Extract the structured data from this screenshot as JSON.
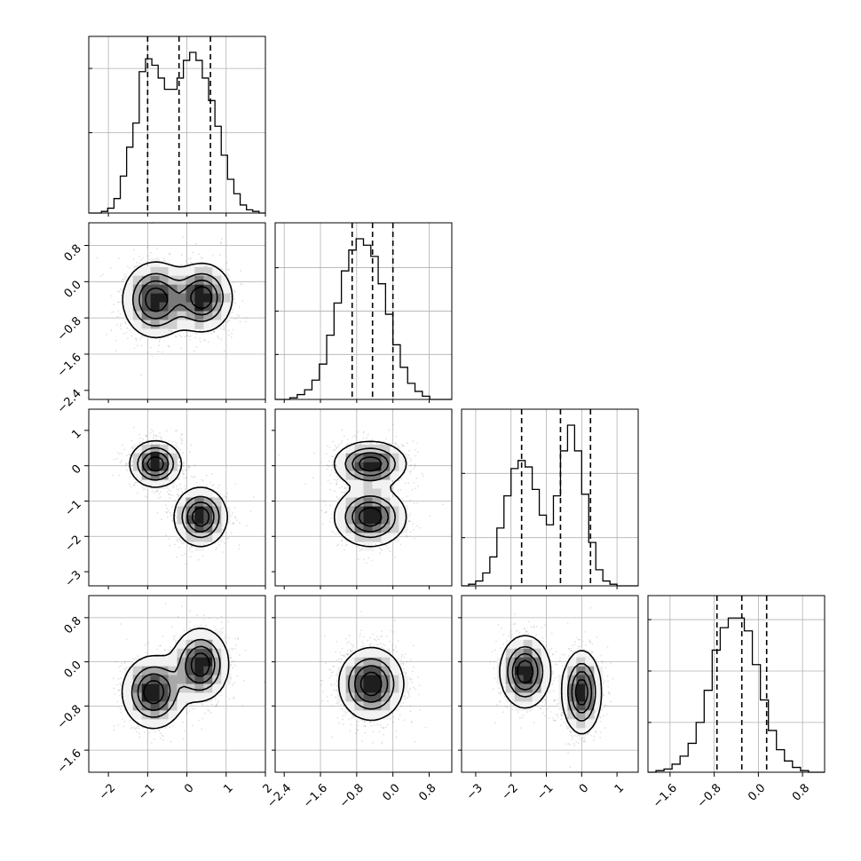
{
  "chart_data": {
    "type": "corner",
    "title": "",
    "n_params": 4,
    "colors": {
      "points": "#777777",
      "lines": "#000000",
      "grid": "#b0b0b0",
      "density_levels": [
        "#f2f2f2",
        "#cfcfcf",
        "#a8a8a8",
        "#7a7a7a",
        "#505050",
        "#1e1e1e"
      ]
    },
    "grid": true,
    "params": [
      {
        "label": "",
        "range": [
          -2.5,
          2.0
        ],
        "ticks": [
          -2,
          -1,
          0,
          1,
          2
        ],
        "tick_labels": [
          "−2",
          "−1",
          "0",
          "1",
          "2"
        ],
        "quantiles": [
          -1.0,
          -0.2,
          0.6
        ],
        "hist_max": 1.0,
        "hist_grid": [
          0.5,
          0.9
        ],
        "hist_bins": [
          0.0,
          0.0,
          0.01,
          0.03,
          0.09,
          0.23,
          0.41,
          0.56,
          0.88,
          0.96,
          0.92,
          0.84,
          0.77,
          0.77,
          0.84,
          0.95,
          1.0,
          0.95,
          0.84,
          0.7,
          0.54,
          0.36,
          0.21,
          0.12,
          0.05,
          0.02,
          0.01,
          0.0
        ]
      },
      {
        "label": "",
        "range": [
          -2.6,
          1.3
        ],
        "ticks": [
          -2.4,
          -1.6,
          -0.8,
          0.0,
          0.8
        ],
        "tick_labels": [
          "−2.4",
          "−1.6",
          "−0.8",
          "0.0",
          "0.8"
        ],
        "quantiles": [
          -0.9,
          -0.45,
          0.0
        ],
        "hist_max": 1.0,
        "hist_grid": [
          0.28,
          0.55,
          0.82
        ],
        "hist_bins": [
          0.0,
          0.0,
          0.01,
          0.03,
          0.06,
          0.12,
          0.22,
          0.4,
          0.6,
          0.8,
          0.93,
          1.0,
          0.96,
          0.89,
          0.72,
          0.53,
          0.34,
          0.2,
          0.1,
          0.05,
          0.02,
          0.0,
          0.0,
          0.0
        ]
      },
      {
        "label": "",
        "range": [
          -3.4,
          1.6
        ],
        "ticks": [
          -3,
          -2,
          -1,
          0,
          1
        ],
        "tick_labels": [
          "−3",
          "−2",
          "−1",
          "0",
          "1"
        ],
        "quantiles": [
          -1.7,
          -0.6,
          0.25
        ],
        "hist_max": 1.0,
        "hist_grid": [
          0.3,
          0.7
        ],
        "hist_bins": [
          0.0,
          0.01,
          0.03,
          0.08,
          0.18,
          0.36,
          0.56,
          0.73,
          0.78,
          0.74,
          0.6,
          0.44,
          0.38,
          0.56,
          0.84,
          1.0,
          0.84,
          0.57,
          0.27,
          0.1,
          0.03,
          0.01,
          0.0,
          0.0,
          0.0
        ]
      },
      {
        "label": "",
        "range": [
          -2.0,
          1.2
        ],
        "ticks": [
          -1.6,
          -0.8,
          0.0,
          0.8
        ],
        "tick_labels": [
          "−1.6",
          "−0.8",
          "0.0",
          "0.8"
        ],
        "quantiles": [
          -0.75,
          -0.3,
          0.15
        ],
        "hist_max": 1.0,
        "hist_grid": [
          0.31,
          0.63,
          0.95
        ],
        "hist_bins": [
          0.0,
          0.01,
          0.02,
          0.05,
          0.1,
          0.18,
          0.31,
          0.51,
          0.76,
          0.9,
          0.96,
          0.96,
          0.88,
          0.67,
          0.45,
          0.26,
          0.14,
          0.07,
          0.03,
          0.01,
          0.0,
          0.0
        ]
      }
    ],
    "pairs": [
      {
        "x": 0,
        "y": 1,
        "grid_x": [
          -1,
          0,
          1
        ],
        "grid_y": [
          -1.6,
          -0.8,
          0.0,
          0.8
        ],
        "modes": [
          {
            "cx": -0.8,
            "cy": -0.4,
            "sx": 0.42,
            "sy": 0.42,
            "w": 0.5
          },
          {
            "cx": 0.4,
            "cy": -0.35,
            "sx": 0.38,
            "sy": 0.38,
            "w": 0.5
          }
        ]
      },
      {
        "x": 0,
        "y": 2,
        "grid_x": [
          -1,
          0,
          1
        ],
        "grid_y": [
          -2,
          -1,
          0
        ],
        "modes": [
          {
            "cx": -0.8,
            "cy": 0.05,
            "sx": 0.33,
            "sy": 0.33,
            "w": 0.5
          },
          {
            "cx": 0.35,
            "cy": -1.45,
            "sx": 0.34,
            "sy": 0.42,
            "w": 0.5
          }
        ]
      },
      {
        "x": 1,
        "y": 2,
        "grid_x": [
          -1.6,
          -0.8,
          0.0
        ],
        "grid_y": [
          -2,
          -1,
          0
        ],
        "modes": [
          {
            "cx": -0.5,
            "cy": 0.05,
            "sx": 0.4,
            "sy": 0.32,
            "w": 0.5
          },
          {
            "cx": -0.5,
            "cy": -1.45,
            "sx": 0.4,
            "sy": 0.42,
            "w": 0.5
          }
        ]
      },
      {
        "x": 0,
        "y": 3,
        "grid_x": [
          -1,
          0,
          1
        ],
        "grid_y": [
          -1.6,
          -0.8,
          0.0,
          0.8
        ],
        "modes": [
          {
            "cx": -0.85,
            "cy": -0.55,
            "sx": 0.4,
            "sy": 0.33,
            "w": 0.5
          },
          {
            "cx": 0.35,
            "cy": -0.05,
            "sx": 0.36,
            "sy": 0.33,
            "w": 0.5
          }
        ]
      },
      {
        "x": 1,
        "y": 3,
        "grid_x": [
          -1.6,
          -0.8,
          0.0
        ],
        "grid_y": [
          -1.6,
          -0.8,
          0.0,
          0.8
        ],
        "modes": [
          {
            "cx": -0.48,
            "cy": -0.4,
            "sx": 0.36,
            "sy": 0.33,
            "w": 1.0
          }
        ]
      },
      {
        "x": 2,
        "y": 3,
        "grid_x": [
          -2,
          -1,
          0
        ],
        "grid_y": [
          -1.6,
          -0.8,
          0.0,
          0.8
        ],
        "modes": [
          {
            "cx": -1.6,
            "cy": -0.18,
            "sx": 0.36,
            "sy": 0.33,
            "w": 0.5
          },
          {
            "cx": 0.0,
            "cy": -0.55,
            "sx": 0.28,
            "sy": 0.38,
            "w": 0.5
          }
        ]
      }
    ]
  }
}
